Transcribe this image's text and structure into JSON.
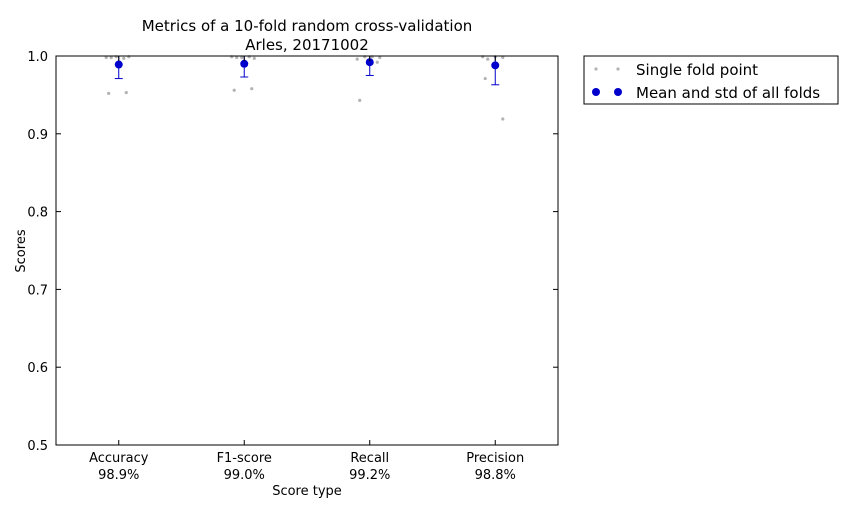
{
  "chart_data": {
    "type": "scatter",
    "title": "Metrics of a 10-fold random cross-validation",
    "subtitle": "Arles, 20171002",
    "xlabel": "Score type",
    "ylabel": "Scores",
    "ylim": [
      0.5,
      1.0
    ],
    "yticks": [
      "0.5",
      "0.6",
      "0.7",
      "0.8",
      "0.9",
      "1.0"
    ],
    "grid": false,
    "legend_position": "outside-top-right",
    "categories": [
      {
        "name": "Accuracy",
        "summary": "98.9%"
      },
      {
        "name": "F1-score",
        "summary": "99.0%"
      },
      {
        "name": "Recall",
        "summary": "99.2%"
      },
      {
        "name": "Precision",
        "summary": "98.8%"
      }
    ],
    "series": [
      {
        "name": "Single fold point",
        "color": "#b3b3b3",
        "points": [
          [
            [
              -0.1,
              0.998
            ],
            [
              -0.06,
              0.998
            ],
            [
              -0.02,
              0.999
            ],
            [
              0.04,
              0.997
            ],
            [
              0.08,
              0.999
            ],
            [
              -0.08,
              0.952
            ],
            [
              0.06,
              0.953
            ]
          ],
          [
            [
              -0.1,
              0.999
            ],
            [
              -0.06,
              0.998
            ],
            [
              -0.02,
              0.998
            ],
            [
              0.04,
              0.999
            ],
            [
              0.08,
              0.997
            ],
            [
              -0.08,
              0.956
            ],
            [
              0.06,
              0.958
            ]
          ],
          [
            [
              -0.1,
              0.996
            ],
            [
              -0.04,
              0.999
            ],
            [
              0.02,
              0.999
            ],
            [
              0.06,
              0.992
            ],
            [
              0.08,
              0.998
            ],
            [
              -0.08,
              0.943
            ]
          ],
          [
            [
              -0.1,
              0.999
            ],
            [
              -0.06,
              0.996
            ],
            [
              0.0,
              0.999
            ],
            [
              0.06,
              0.998
            ],
            [
              -0.08,
              0.971
            ],
            [
              0.06,
              0.919
            ]
          ]
        ]
      },
      {
        "name": "Mean and std of all folds",
        "color": "#0000cc",
        "means": [
          0.989,
          0.99,
          0.992,
          0.988
        ],
        "stds": [
          0.018,
          0.017,
          0.017,
          0.025
        ]
      }
    ]
  }
}
